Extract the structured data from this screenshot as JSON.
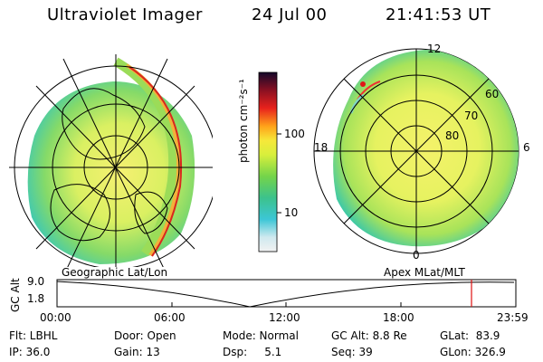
{
  "header": {
    "instrument": "Ultraviolet Imager",
    "date": "24 Jul 00",
    "time": "21:41:53 UT"
  },
  "colorbar": {
    "label": "photon cm⁻²s⁻¹",
    "ticks": [
      "100",
      "10"
    ]
  },
  "left_panel": {
    "caption": "Geographic Lat/Lon"
  },
  "right_panel": {
    "caption": "Apex MLat/MLT",
    "mlt_labels": {
      "top": "12",
      "left": "18",
      "right": "6",
      "bottom": "0"
    },
    "mlat_labels": [
      "60",
      "70",
      "80"
    ]
  },
  "altitude_plot": {
    "ylabel": "GC Alt",
    "yticks": [
      "9.0",
      "1.8"
    ],
    "xticks": [
      "00:00",
      "06:00",
      "12:00",
      "18:00",
      "23:59"
    ]
  },
  "status": {
    "flt": "Flt: LBHL",
    "ip": "IP: 36.0",
    "door": "Door: Open",
    "gain": "Gain: 13",
    "mode": "Mode: Normal",
    "dsp": "Dsp:     5.1",
    "gcalt": "GC Alt: 8.8 Re",
    "seq": "Seq: 39",
    "glat": "GLat:  83.9",
    "glon": "GLon: 326.9"
  }
}
